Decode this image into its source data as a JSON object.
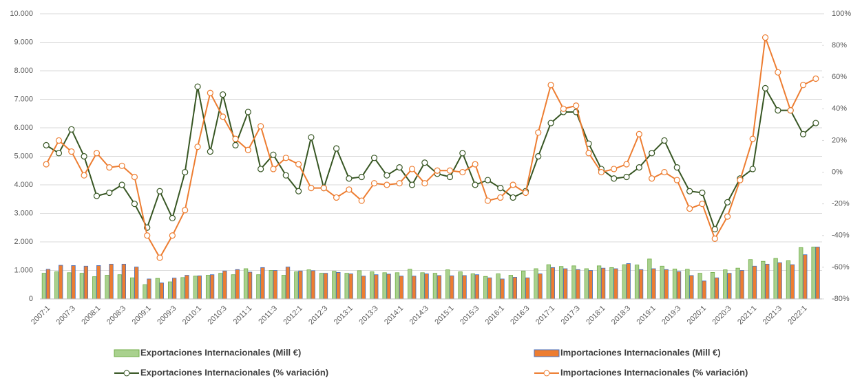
{
  "chart_data": {
    "type": "bar",
    "categories": [
      "2007:1",
      null,
      "2007:3",
      null,
      "2008:1",
      null,
      "2008:3",
      null,
      "2009:1",
      null,
      "2009:3",
      null,
      "2010:1",
      null,
      "2010:3",
      null,
      "2011:1",
      null,
      "2011:3",
      null,
      "2012:1",
      null,
      "2012:3",
      null,
      "2013:1",
      null,
      "2013:3",
      null,
      "2014:1",
      null,
      "2014:3",
      null,
      "2015:1",
      null,
      "2015:3",
      null,
      "2016:1",
      null,
      "2016:3",
      null,
      "2017:1",
      null,
      "2017:3",
      null,
      "2018:1",
      null,
      "2018:3",
      null,
      "2019:1",
      null,
      "2019:3",
      null,
      "2020:1",
      null,
      "2020:3",
      null,
      "2021:1",
      null,
      "2021:3",
      null,
      "2022:1",
      null
    ],
    "series": [
      {
        "name": "Exportaciones Internacionales (Mill €)",
        "type": "bar",
        "color": "#a9d18e",
        "values": [
          900,
          950,
          920,
          900,
          780,
          830,
          850,
          740,
          500,
          720,
          600,
          750,
          800,
          830,
          900,
          850,
          1060,
          850,
          1000,
          830,
          950,
          1020,
          900,
          970,
          900,
          990,
          950,
          920,
          920,
          1040,
          920,
          900,
          1020,
          950,
          880,
          790,
          880,
          830,
          980,
          1060,
          1200,
          1140,
          1160,
          1060,
          1160,
          1100,
          1200,
          1190,
          1400,
          1150,
          1050,
          1040,
          900,
          930,
          1020,
          1080,
          1380,
          1320,
          1420,
          1340,
          1800,
          1820
        ]
      },
      {
        "name": "Importaciones Internacionales (Mill €)",
        "type": "bar",
        "color": "#ed7d31",
        "values": [
          1040,
          1180,
          1170,
          1150,
          1170,
          1220,
          1220,
          1120,
          700,
          560,
          730,
          830,
          810,
          850,
          980,
          1030,
          940,
          1100,
          1000,
          1120,
          980,
          990,
          900,
          930,
          880,
          800,
          850,
          870,
          800,
          800,
          880,
          820,
          810,
          820,
          850,
          740,
          700,
          760,
          740,
          880,
          1100,
          1060,
          1030,
          1000,
          1080,
          1060,
          1240,
          1030,
          1060,
          1030,
          960,
          820,
          630,
          740,
          900,
          1000,
          1150,
          1220,
          1270,
          1200,
          1550,
          1820
        ]
      },
      {
        "name": "Exportaciones Internacionales (% variación)",
        "type": "line",
        "axis": "y2",
        "color": "#375623",
        "values": [
          17,
          12,
          27,
          10,
          -15,
          -13,
          -8,
          -20,
          -35,
          -12,
          -29,
          0,
          54,
          13,
          49,
          17,
          38,
          2,
          11,
          -2,
          -12,
          22,
          -10,
          15,
          -4,
          -3,
          9,
          -2,
          3,
          -8,
          6,
          -1,
          -3,
          12,
          -8,
          -5,
          -10,
          -16,
          -12,
          10,
          31,
          38,
          38,
          18,
          2,
          -4,
          -3,
          3,
          12,
          20,
          3,
          -12,
          -13,
          -36,
          -19,
          -4,
          2,
          53,
          39,
          39,
          24,
          31
        ]
      },
      {
        "name": "Importaciones Internacionales (% variación)",
        "type": "line",
        "axis": "y2",
        "color": "#ed7d31",
        "values": [
          5,
          20,
          13,
          -2,
          12,
          3,
          4,
          -3,
          -40,
          -54,
          -40,
          -24,
          16,
          50,
          35,
          21,
          14,
          29,
          2,
          9,
          5,
          -10,
          -10,
          -16,
          -11,
          -18,
          -7,
          -8,
          -7,
          2,
          -7,
          1,
          1,
          0,
          5,
          -18,
          -16,
          -8,
          -13,
          25,
          55,
          40,
          42,
          12,
          0,
          2,
          5,
          24,
          -4,
          0,
          -5,
          -23,
          -20,
          -42,
          -28,
          -5,
          21,
          85,
          63,
          39,
          55,
          59
        ]
      }
    ],
    "ylim": [
      0,
      10000
    ],
    "yticks": [
      0,
      {
        "value": 1000,
        "label": "1.000"
      },
      {
        "value": 2000,
        "label": "2.000"
      },
      {
        "value": 3000,
        "label": "3.000"
      },
      {
        "value": 4000,
        "label": "4.000"
      },
      {
        "value": 5000,
        "label": "5.000"
      },
      {
        "value": 6000,
        "label": "6.000"
      },
      {
        "value": 7000,
        "label": "7.000"
      },
      {
        "value": 8000,
        "label": "8.000"
      },
      {
        "value": 9000,
        "label": "9.000"
      },
      {
        "value": 10000,
        "label": "10.000"
      }
    ],
    "y2lim": [
      -80,
      100
    ],
    "y2ticks": [
      {
        "value": -80,
        "label": "-80%"
      },
      {
        "value": -60,
        "label": "-60%"
      },
      {
        "value": -40,
        "label": "-40%"
      },
      {
        "value": -20,
        "label": "-20%"
      },
      {
        "value": 0,
        "label": "0%"
      },
      {
        "value": 20,
        "label": "20%"
      },
      {
        "value": 40,
        "label": "40%"
      },
      {
        "value": 60,
        "label": "60%"
      },
      {
        "value": 80,
        "label": "80%"
      },
      {
        "value": 100,
        "label": "100%"
      }
    ],
    "grid": true
  }
}
